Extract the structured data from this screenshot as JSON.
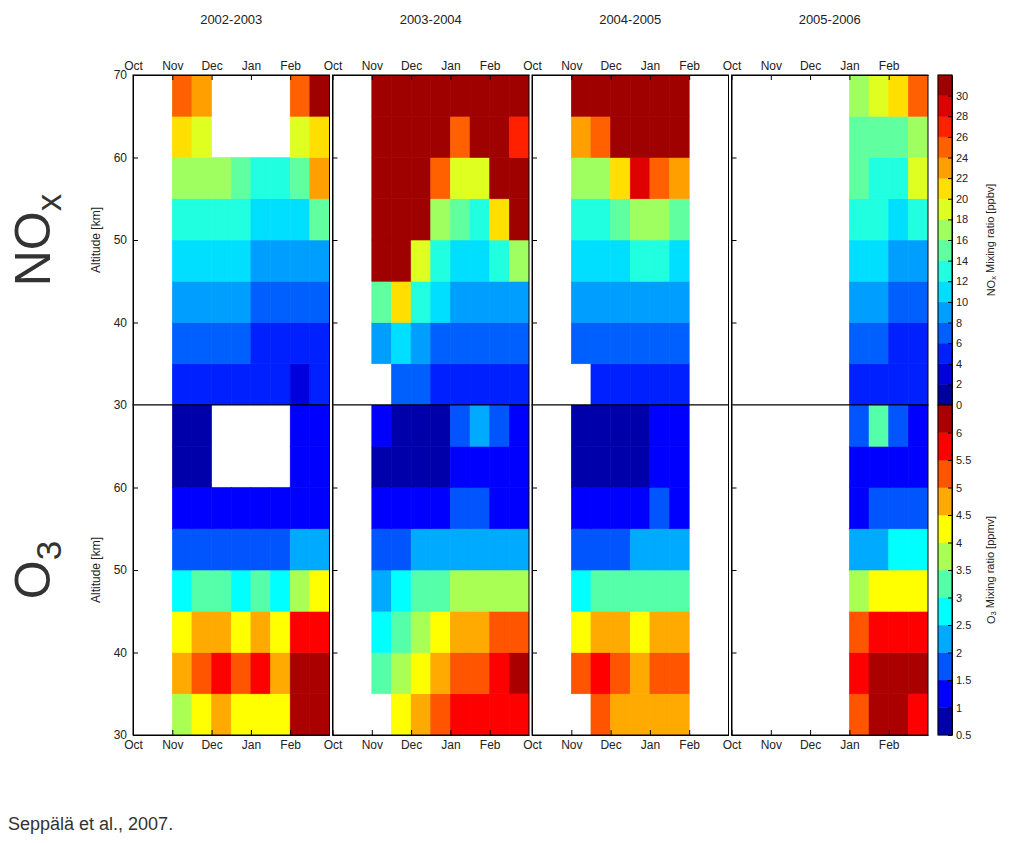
{
  "chart_data": {
    "type": "heatmap",
    "source": "Seppälä et al., 2007.",
    "columns": [
      "2002-2003",
      "2003-2004",
      "2004-2005",
      "2005-2006"
    ],
    "x": [
      0,
      0.5,
      1,
      1.5,
      2,
      2.5,
      3,
      3.5,
      4,
      4.5,
      5
    ],
    "xlim": [
      0,
      5
    ],
    "xticks": [
      {
        "value": 0,
        "label": "Oct"
      },
      {
        "value": 1,
        "label": "Nov"
      },
      {
        "value": 2,
        "label": "Dec"
      },
      {
        "value": 3,
        "label": "Jan"
      },
      {
        "value": 4,
        "label": "Feb"
      }
    ],
    "y": [
      30,
      35,
      40,
      45,
      50,
      55,
      60,
      65,
      70
    ],
    "ylim": [
      30,
      70
    ],
    "rows": [
      {
        "name": "NOx",
        "ylabel": "Altitude [km]",
        "yticks": [
          30,
          40,
          50,
          60,
          70
        ],
        "colorbar": {
          "label": "NOx Mixing ratio [ppbv]",
          "range": [
            0,
            32
          ],
          "ticks": [
            0,
            2,
            4,
            6,
            8,
            10,
            12,
            14,
            16,
            18,
            20,
            22,
            24,
            26,
            28,
            30
          ]
        },
        "cells": [
          [
            [
              null,
              null,
              5,
              5,
              5,
              4,
              4,
              4,
              3,
              4
            ],
            [
              null,
              null,
              7,
              7,
              6,
              6,
              5,
              5,
              4,
              5
            ],
            [
              null,
              null,
              9,
              9,
              8,
              8,
              7,
              7,
              6,
              7
            ],
            [
              null,
              null,
              11,
              11,
              10,
              10,
              9,
              8,
              8,
              9
            ],
            [
              null,
              null,
              13,
              13,
              13,
              12,
              11,
              10,
              10,
              14
            ],
            [
              null,
              null,
              16,
              16,
              16,
              15,
              13,
              12,
              14,
              22
            ],
            [
              null,
              null,
              20,
              19,
              null,
              null,
              null,
              null,
              18,
              20
            ],
            [
              null,
              null,
              24,
              22,
              null,
              null,
              null,
              null,
              24,
              30
            ]
          ],
          [
            [
              null,
              null,
              null,
              6,
              6,
              5,
              5,
              5,
              5,
              5
            ],
            [
              null,
              null,
              8,
              10,
              8,
              7,
              7,
              6,
              6,
              6
            ],
            [
              null,
              null,
              14,
              20,
              12,
              10,
              9,
              8,
              8,
              9
            ],
            [
              null,
              null,
              32,
              32,
              18,
              12,
              11,
              10,
              12,
              16
            ],
            [
              null,
              null,
              32,
              32,
              32,
              16,
              14,
              13,
              20,
              32
            ],
            [
              null,
              null,
              32,
              32,
              32,
              24,
              18,
              18,
              32,
              32
            ],
            [
              null,
              null,
              32,
              32,
              32,
              32,
              24,
              32,
              32,
              26
            ],
            [
              null,
              null,
              32,
              32,
              32,
              32,
              32,
              32,
              32,
              32
            ]
          ],
          [
            [
              null,
              null,
              null,
              5,
              5,
              5,
              5,
              5,
              null,
              null
            ],
            [
              null,
              null,
              6,
              6,
              7,
              7,
              7,
              6,
              null,
              null
            ],
            [
              null,
              null,
              8,
              8,
              9,
              9,
              9,
              8,
              null,
              null
            ],
            [
              null,
              null,
              10,
              10,
              11,
              12,
              12,
              11,
              null,
              null
            ],
            [
              null,
              null,
              12,
              12,
              14,
              16,
              16,
              14,
              null,
              null
            ],
            [
              null,
              null,
              16,
              16,
              20,
              28,
              24,
              22,
              null,
              null
            ],
            [
              null,
              null,
              22,
              24,
              32,
              32,
              32,
              32,
              null,
              null
            ],
            [
              null,
              null,
              30,
              32,
              32,
              32,
              32,
              32,
              null,
              null
            ]
          ],
          [
            [
              null,
              null,
              null,
              null,
              null,
              null,
              4,
              4,
              4,
              4
            ],
            [
              null,
              null,
              null,
              null,
              null,
              null,
              6,
              6,
              5,
              5
            ],
            [
              null,
              null,
              null,
              null,
              null,
              null,
              8,
              8,
              7,
              7
            ],
            [
              null,
              null,
              null,
              null,
              null,
              null,
              10,
              10,
              9,
              9
            ],
            [
              null,
              null,
              null,
              null,
              null,
              null,
              12,
              12,
              10,
              12
            ],
            [
              null,
              null,
              null,
              null,
              null,
              null,
              14,
              12,
              12,
              18
            ],
            [
              null,
              null,
              null,
              null,
              null,
              null,
              14,
              14,
              14,
              16
            ],
            [
              null,
              null,
              null,
              null,
              null,
              null,
              16,
              18,
              20,
              24
            ]
          ]
        ]
      },
      {
        "name": "O3",
        "ylabel": "Altitude [km]",
        "yticks": [
          30,
          40,
          50,
          60
        ],
        "colorbar": {
          "label": "O3 Mixing ratio [ppmv]",
          "range": [
            0.5,
            6.5
          ],
          "ticks": [
            0.5,
            1,
            1.5,
            2,
            2.5,
            3,
            3.5,
            4,
            4.5,
            5,
            5.5,
            6
          ]
        },
        "cells": [
          [
            [
              null,
              null,
              3.5,
              4,
              4.5,
              4,
              4,
              4,
              6,
              6.5
            ],
            [
              null,
              null,
              4.5,
              5,
              5.5,
              5,
              5.5,
              4.5,
              6,
              6
            ],
            [
              null,
              null,
              4,
              4.5,
              4.5,
              4,
              4.5,
              4,
              5.5,
              5.5
            ],
            [
              null,
              null,
              2.5,
              3,
              3,
              2.8,
              3,
              2.8,
              3.5,
              4
            ],
            [
              null,
              null,
              1.5,
              1.8,
              1.8,
              1.8,
              1.8,
              1.8,
              2,
              2.2
            ],
            [
              null,
              null,
              1,
              1,
              1,
              1,
              1.1,
              1.1,
              1.2,
              1.2
            ],
            [
              null,
              null,
              0.8,
              0.8,
              null,
              null,
              null,
              null,
              1,
              1
            ],
            [
              null,
              null,
              0.8,
              0.8,
              null,
              null,
              null,
              null,
              1.2,
              1.3
            ]
          ],
          [
            [
              null,
              null,
              null,
              4,
              4.5,
              5,
              5.5,
              5.5,
              5.5,
              5.5
            ],
            [
              null,
              null,
              3,
              3.5,
              4,
              4.5,
              5,
              5,
              5.5,
              6
            ],
            [
              null,
              null,
              2.5,
              3,
              3.5,
              4,
              4.5,
              4.5,
              5,
              5
            ],
            [
              null,
              null,
              2,
              2.5,
              3,
              3,
              3.5,
              3.5,
              3.5,
              3.5
            ],
            [
              null,
              null,
              1.5,
              1.5,
              2,
              2,
              2.2,
              2.2,
              2,
              2
            ],
            [
              null,
              null,
              1,
              1,
              1.2,
              1.2,
              1.5,
              1.5,
              1.2,
              1.2
            ],
            [
              null,
              null,
              0.8,
              0.8,
              0.8,
              0.8,
              1,
              1.2,
              1,
              1
            ],
            [
              null,
              null,
              1,
              0.8,
              0.8,
              0.8,
              1.5,
              2,
              1.5,
              1
            ]
          ],
          [
            [
              null,
              null,
              null,
              5,
              4.5,
              4.5,
              4.5,
              4.5,
              null,
              null
            ],
            [
              null,
              null,
              5,
              5.5,
              5,
              4.5,
              5,
              5,
              null,
              null
            ],
            [
              null,
              null,
              4,
              4.5,
              4.5,
              4,
              4.5,
              4.5,
              null,
              null
            ],
            [
              null,
              null,
              2.8,
              3,
              3,
              3,
              3,
              3,
              null,
              null
            ],
            [
              null,
              null,
              1.8,
              1.8,
              1.8,
              2,
              2,
              2,
              null,
              null
            ],
            [
              null,
              null,
              1,
              1,
              1,
              1.2,
              1.5,
              1.2,
              null,
              null
            ],
            [
              null,
              null,
              0.8,
              0.8,
              0.8,
              0.8,
              1,
              1,
              null,
              null
            ],
            [
              null,
              null,
              0.8,
              0.8,
              0.8,
              0.8,
              1,
              1,
              null,
              null
            ]
          ],
          [
            [
              null,
              null,
              null,
              null,
              null,
              null,
              5,
              6,
              6,
              5.5
            ],
            [
              null,
              null,
              null,
              null,
              null,
              null,
              5.5,
              6,
              6,
              6
            ],
            [
              null,
              null,
              null,
              null,
              null,
              null,
              5,
              5.5,
              5.5,
              5.5
            ],
            [
              null,
              null,
              null,
              null,
              null,
              null,
              3.5,
              4,
              4,
              4
            ],
            [
              null,
              null,
              null,
              null,
              null,
              null,
              2,
              2.2,
              2.5,
              2.5
            ],
            [
              null,
              null,
              null,
              null,
              null,
              null,
              1.2,
              1.5,
              1.5,
              1.5
            ],
            [
              null,
              null,
              null,
              null,
              null,
              null,
              1,
              1.2,
              1.2,
              1.2
            ],
            [
              null,
              null,
              null,
              null,
              null,
              null,
              1.5,
              3,
              1.5,
              1.2
            ]
          ]
        ]
      }
    ]
  }
}
